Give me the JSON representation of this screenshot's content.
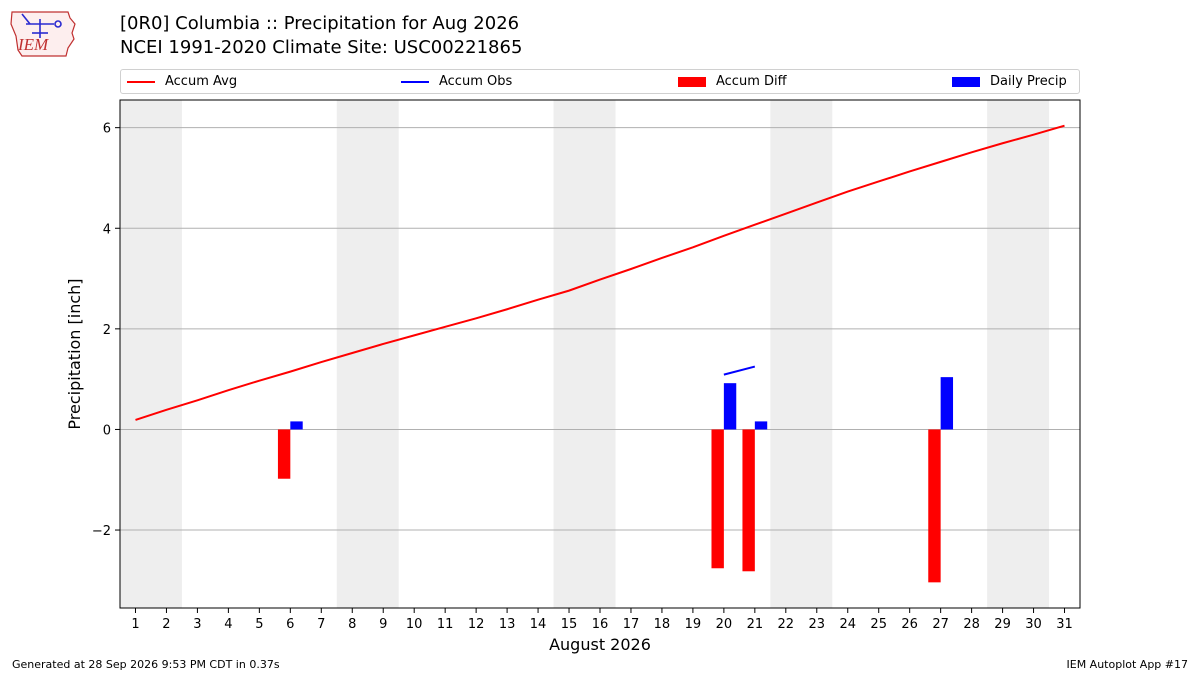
{
  "logo": {
    "text": "IEM"
  },
  "title_line1": "[0R0] Columbia :: Precipitation for Aug 2026",
  "title_line2": "NCEI 1991-2020 Climate Site: USC00221865",
  "legend": [
    {
      "label": "Accum Avg",
      "kind": "line",
      "color": "#ff0000"
    },
    {
      "label": "Accum Obs",
      "kind": "line",
      "color": "#0000ff"
    },
    {
      "label": "Accum Diff",
      "kind": "patch",
      "color": "#ff0000"
    },
    {
      "label": "Daily Precip",
      "kind": "patch",
      "color": "#0000ff"
    }
  ],
  "footer_left": "Generated at 28 Sep 2026 9:53 PM CDT in 0.37s",
  "footer_right": "IEM Autoplot App #17",
  "chart_data": {
    "type": "bar",
    "xlabel": "August 2026",
    "ylabel": "Precipitation [inch]",
    "xlim": [
      0.5,
      31.5
    ],
    "ylim": [
      -3.55,
      6.55
    ],
    "xticks": [
      1,
      2,
      3,
      4,
      5,
      6,
      7,
      8,
      9,
      10,
      11,
      12,
      13,
      14,
      15,
      16,
      17,
      18,
      19,
      20,
      21,
      22,
      23,
      24,
      25,
      26,
      27,
      28,
      29,
      30,
      31
    ],
    "yticks": [
      -2,
      0,
      2,
      4,
      6
    ],
    "ytick_labels": [
      "−2",
      "0",
      "2",
      "4",
      "6"
    ],
    "grid": "y",
    "legend_position": "top",
    "weekend_shading": [
      [
        1,
        2
      ],
      [
        8,
        9
      ],
      [
        15,
        16
      ],
      [
        22,
        23
      ],
      [
        29,
        30
      ]
    ],
    "series": [
      {
        "name": "Accum Avg",
        "kind": "line",
        "color": "#ff0000",
        "x": [
          1,
          2,
          3,
          4,
          5,
          6,
          7,
          8,
          9,
          10,
          11,
          12,
          13,
          14,
          15,
          16,
          17,
          18,
          19,
          20,
          21,
          22,
          23,
          24,
          25,
          26,
          27,
          28,
          29,
          30,
          31
        ],
        "values": [
          0.19,
          0.39,
          0.58,
          0.78,
          0.97,
          1.15,
          1.34,
          1.52,
          1.7,
          1.87,
          2.04,
          2.21,
          2.39,
          2.58,
          2.76,
          2.98,
          3.19,
          3.41,
          3.62,
          3.85,
          4.07,
          4.29,
          4.51,
          4.73,
          4.93,
          5.13,
          5.32,
          5.51,
          5.69,
          5.86,
          6.04
        ]
      },
      {
        "name": "Accum Obs",
        "kind": "line",
        "color": "#0000ff",
        "x": [
          20,
          21
        ],
        "values": [
          1.09,
          1.25
        ]
      },
      {
        "name": "Accum Diff",
        "kind": "bar",
        "color": "#ff0000",
        "x": [
          6,
          20,
          21,
          27
        ],
        "values": [
          -0.98,
          -2.76,
          -2.82,
          -3.04
        ]
      },
      {
        "name": "Daily Precip",
        "kind": "bar",
        "color": "#0000ff",
        "x": [
          6,
          20,
          21,
          27
        ],
        "values": [
          0.16,
          0.92,
          0.16,
          1.04
        ]
      }
    ]
  }
}
